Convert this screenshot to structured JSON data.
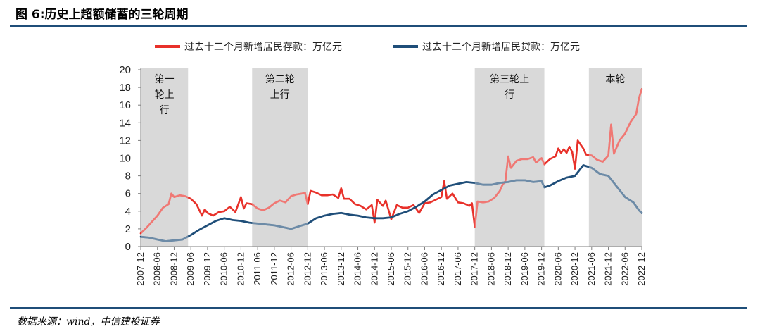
{
  "figure": {
    "title": "图 6:历史上超额储蓄的三轮周期",
    "source": "数据来源：wind，中信建投证券"
  },
  "chart_data": {
    "type": "line",
    "ylim": [
      0,
      20
    ],
    "yticks": [
      0,
      2,
      4,
      6,
      8,
      10,
      12,
      14,
      16,
      18,
      20
    ],
    "xlim": [
      "2007-12",
      "2022-12"
    ],
    "xticks": [
      "2007-12",
      "2008-06",
      "2008-12",
      "2009-06",
      "2009-12",
      "2010-06",
      "2010-12",
      "2011-06",
      "2011-12",
      "2012-06",
      "2012-12",
      "2013-06",
      "2013-12",
      "2014-06",
      "2014-12",
      "2015-06",
      "2015-12",
      "2016-06",
      "2016-12",
      "2017-06",
      "2017-12",
      "2018-06",
      "2018-12",
      "2019-06",
      "2019-12",
      "2020-06",
      "2020-12",
      "2021-06",
      "2021-12",
      "2022-06",
      "2022-12"
    ],
    "grid": false,
    "legend_position": "top",
    "colors": {
      "deposit": "#e8312a",
      "loan": "#1f4e79",
      "shade": "#d9d9d9"
    },
    "shaded_periods": [
      {
        "label": [
          "第一",
          "轮上",
          "行"
        ],
        "start": "2007-12",
        "end": "2009-05"
      },
      {
        "label": [
          "第二轮",
          "上行"
        ],
        "start": "2011-04",
        "end": "2012-12"
      },
      {
        "label": [
          "第三轮上",
          "行"
        ],
        "start": "2017-12",
        "end": "2020-01"
      },
      {
        "label": [
          "本轮"
        ],
        "start": "2021-05",
        "end": "2022-12"
      }
    ],
    "series": [
      {
        "name": "过去十二个月新增居民存款：万亿元",
        "key": "deposit",
        "points": [
          [
            "2007-12",
            1.5
          ],
          [
            "2008-02",
            2.1
          ],
          [
            "2008-04",
            2.8
          ],
          [
            "2008-06",
            3.5
          ],
          [
            "2008-08",
            4.4
          ],
          [
            "2008-10",
            4.8
          ],
          [
            "2008-11",
            6.0
          ],
          [
            "2008-12",
            5.6
          ],
          [
            "2009-02",
            5.8
          ],
          [
            "2009-04",
            5.7
          ],
          [
            "2009-06",
            5.4
          ],
          [
            "2009-08",
            4.8
          ],
          [
            "2009-10",
            3.5
          ],
          [
            "2009-11",
            4.2
          ],
          [
            "2009-12",
            3.8
          ],
          [
            "2010-02",
            3.5
          ],
          [
            "2010-04",
            3.9
          ],
          [
            "2010-06",
            4.0
          ],
          [
            "2010-08",
            4.5
          ],
          [
            "2010-10",
            3.9
          ],
          [
            "2010-12",
            5.6
          ],
          [
            "2011-01",
            4.3
          ],
          [
            "2011-02",
            4.9
          ],
          [
            "2011-04",
            4.8
          ],
          [
            "2011-06",
            4.3
          ],
          [
            "2011-08",
            4.1
          ],
          [
            "2011-10",
            4.4
          ],
          [
            "2011-12",
            4.9
          ],
          [
            "2012-02",
            5.2
          ],
          [
            "2012-04",
            5.0
          ],
          [
            "2012-06",
            5.7
          ],
          [
            "2012-08",
            5.9
          ],
          [
            "2012-10",
            6.0
          ],
          [
            "2012-11",
            6.1
          ],
          [
            "2012-12",
            4.8
          ],
          [
            "2013-01",
            6.3
          ],
          [
            "2013-03",
            6.1
          ],
          [
            "2013-05",
            5.8
          ],
          [
            "2013-07",
            5.8
          ],
          [
            "2013-09",
            5.9
          ],
          [
            "2013-11",
            5.5
          ],
          [
            "2013-12",
            6.6
          ],
          [
            "2014-01",
            5.4
          ],
          [
            "2014-03",
            5.4
          ],
          [
            "2014-05",
            4.8
          ],
          [
            "2014-07",
            4.6
          ],
          [
            "2014-09",
            4.2
          ],
          [
            "2014-11",
            4.7
          ],
          [
            "2014-12",
            2.7
          ],
          [
            "2015-01",
            5.3
          ],
          [
            "2015-03",
            4.6
          ],
          [
            "2015-04",
            5.2
          ],
          [
            "2015-06",
            3.1
          ],
          [
            "2015-08",
            4.7
          ],
          [
            "2015-10",
            4.4
          ],
          [
            "2015-12",
            4.4
          ],
          [
            "2016-02",
            4.7
          ],
          [
            "2016-04",
            3.8
          ],
          [
            "2016-06",
            4.9
          ],
          [
            "2016-08",
            5.0
          ],
          [
            "2016-10",
            5.3
          ],
          [
            "2016-12",
            5.6
          ],
          [
            "2017-01",
            7.4
          ],
          [
            "2017-02",
            5.4
          ],
          [
            "2017-04",
            6.0
          ],
          [
            "2017-06",
            5.0
          ],
          [
            "2017-08",
            4.9
          ],
          [
            "2017-10",
            4.6
          ],
          [
            "2017-11",
            4.9
          ],
          [
            "2017-12",
            2.2
          ],
          [
            "2018-01",
            5.1
          ],
          [
            "2018-03",
            5.0
          ],
          [
            "2018-05",
            5.1
          ],
          [
            "2018-07",
            5.5
          ],
          [
            "2018-09",
            6.3
          ],
          [
            "2018-10",
            7.0
          ],
          [
            "2018-11",
            7.4
          ],
          [
            "2018-12",
            10.2
          ],
          [
            "2019-01",
            8.9
          ],
          [
            "2019-03",
            9.7
          ],
          [
            "2019-05",
            9.9
          ],
          [
            "2019-07",
            9.9
          ],
          [
            "2019-09",
            10.1
          ],
          [
            "2019-10",
            9.5
          ],
          [
            "2019-12",
            10.0
          ],
          [
            "2020-01",
            9.3
          ],
          [
            "2020-03",
            9.9
          ],
          [
            "2020-05",
            10.2
          ],
          [
            "2020-06",
            11.1
          ],
          [
            "2020-07",
            10.6
          ],
          [
            "2020-08",
            11.0
          ],
          [
            "2020-09",
            10.6
          ],
          [
            "2020-10",
            11.3
          ],
          [
            "2020-11",
            10.7
          ],
          [
            "2020-12",
            8.8
          ],
          [
            "2021-01",
            12.0
          ],
          [
            "2021-03",
            11.1
          ],
          [
            "2021-04",
            10.4
          ],
          [
            "2021-06",
            10.3
          ],
          [
            "2021-08",
            9.8
          ],
          [
            "2021-10",
            9.6
          ],
          [
            "2021-12",
            10.3
          ],
          [
            "2022-01",
            13.8
          ],
          [
            "2022-02",
            10.5
          ],
          [
            "2022-04",
            12.0
          ],
          [
            "2022-06",
            12.8
          ],
          [
            "2022-08",
            14.1
          ],
          [
            "2022-10",
            15.0
          ],
          [
            "2022-11",
            16.8
          ],
          [
            "2022-12",
            17.8
          ]
        ]
      },
      {
        "name": "过去十二个月新增居民贷款：万亿元",
        "key": "loan",
        "points": [
          [
            "2007-12",
            1.1
          ],
          [
            "2008-03",
            1.0
          ],
          [
            "2008-06",
            0.8
          ],
          [
            "2008-09",
            0.6
          ],
          [
            "2008-12",
            0.7
          ],
          [
            "2009-03",
            0.8
          ],
          [
            "2009-06",
            1.3
          ],
          [
            "2009-09",
            1.9
          ],
          [
            "2009-12",
            2.4
          ],
          [
            "2010-03",
            2.9
          ],
          [
            "2010-06",
            3.2
          ],
          [
            "2010-09",
            3.0
          ],
          [
            "2010-12",
            2.9
          ],
          [
            "2011-03",
            2.7
          ],
          [
            "2011-06",
            2.6
          ],
          [
            "2011-09",
            2.5
          ],
          [
            "2011-12",
            2.4
          ],
          [
            "2012-03",
            2.2
          ],
          [
            "2012-06",
            2.0
          ],
          [
            "2012-09",
            2.3
          ],
          [
            "2012-12",
            2.6
          ],
          [
            "2013-03",
            3.2
          ],
          [
            "2013-06",
            3.5
          ],
          [
            "2013-09",
            3.7
          ],
          [
            "2013-12",
            3.8
          ],
          [
            "2014-03",
            3.6
          ],
          [
            "2014-06",
            3.5
          ],
          [
            "2014-09",
            3.3
          ],
          [
            "2014-12",
            3.2
          ],
          [
            "2015-03",
            3.2
          ],
          [
            "2015-06",
            3.3
          ],
          [
            "2015-09",
            3.7
          ],
          [
            "2015-12",
            4.0
          ],
          [
            "2016-03",
            4.5
          ],
          [
            "2016-06",
            5.1
          ],
          [
            "2016-09",
            5.9
          ],
          [
            "2016-12",
            6.4
          ],
          [
            "2017-03",
            6.9
          ],
          [
            "2017-06",
            7.1
          ],
          [
            "2017-09",
            7.3
          ],
          [
            "2017-12",
            7.2
          ],
          [
            "2018-03",
            7.0
          ],
          [
            "2018-06",
            7.0
          ],
          [
            "2018-09",
            7.2
          ],
          [
            "2018-12",
            7.3
          ],
          [
            "2019-03",
            7.5
          ],
          [
            "2019-06",
            7.5
          ],
          [
            "2019-09",
            7.3
          ],
          [
            "2019-12",
            7.4
          ],
          [
            "2020-01",
            6.7
          ],
          [
            "2020-03",
            6.9
          ],
          [
            "2020-06",
            7.4
          ],
          [
            "2020-09",
            7.8
          ],
          [
            "2020-12",
            8.0
          ],
          [
            "2021-03",
            9.2
          ],
          [
            "2021-06",
            8.9
          ],
          [
            "2021-09",
            8.2
          ],
          [
            "2021-12",
            8.0
          ],
          [
            "2022-03",
            6.8
          ],
          [
            "2022-06",
            5.6
          ],
          [
            "2022-09",
            5.0
          ],
          [
            "2022-11",
            4.1
          ],
          [
            "2022-12",
            3.8
          ]
        ]
      }
    ]
  }
}
